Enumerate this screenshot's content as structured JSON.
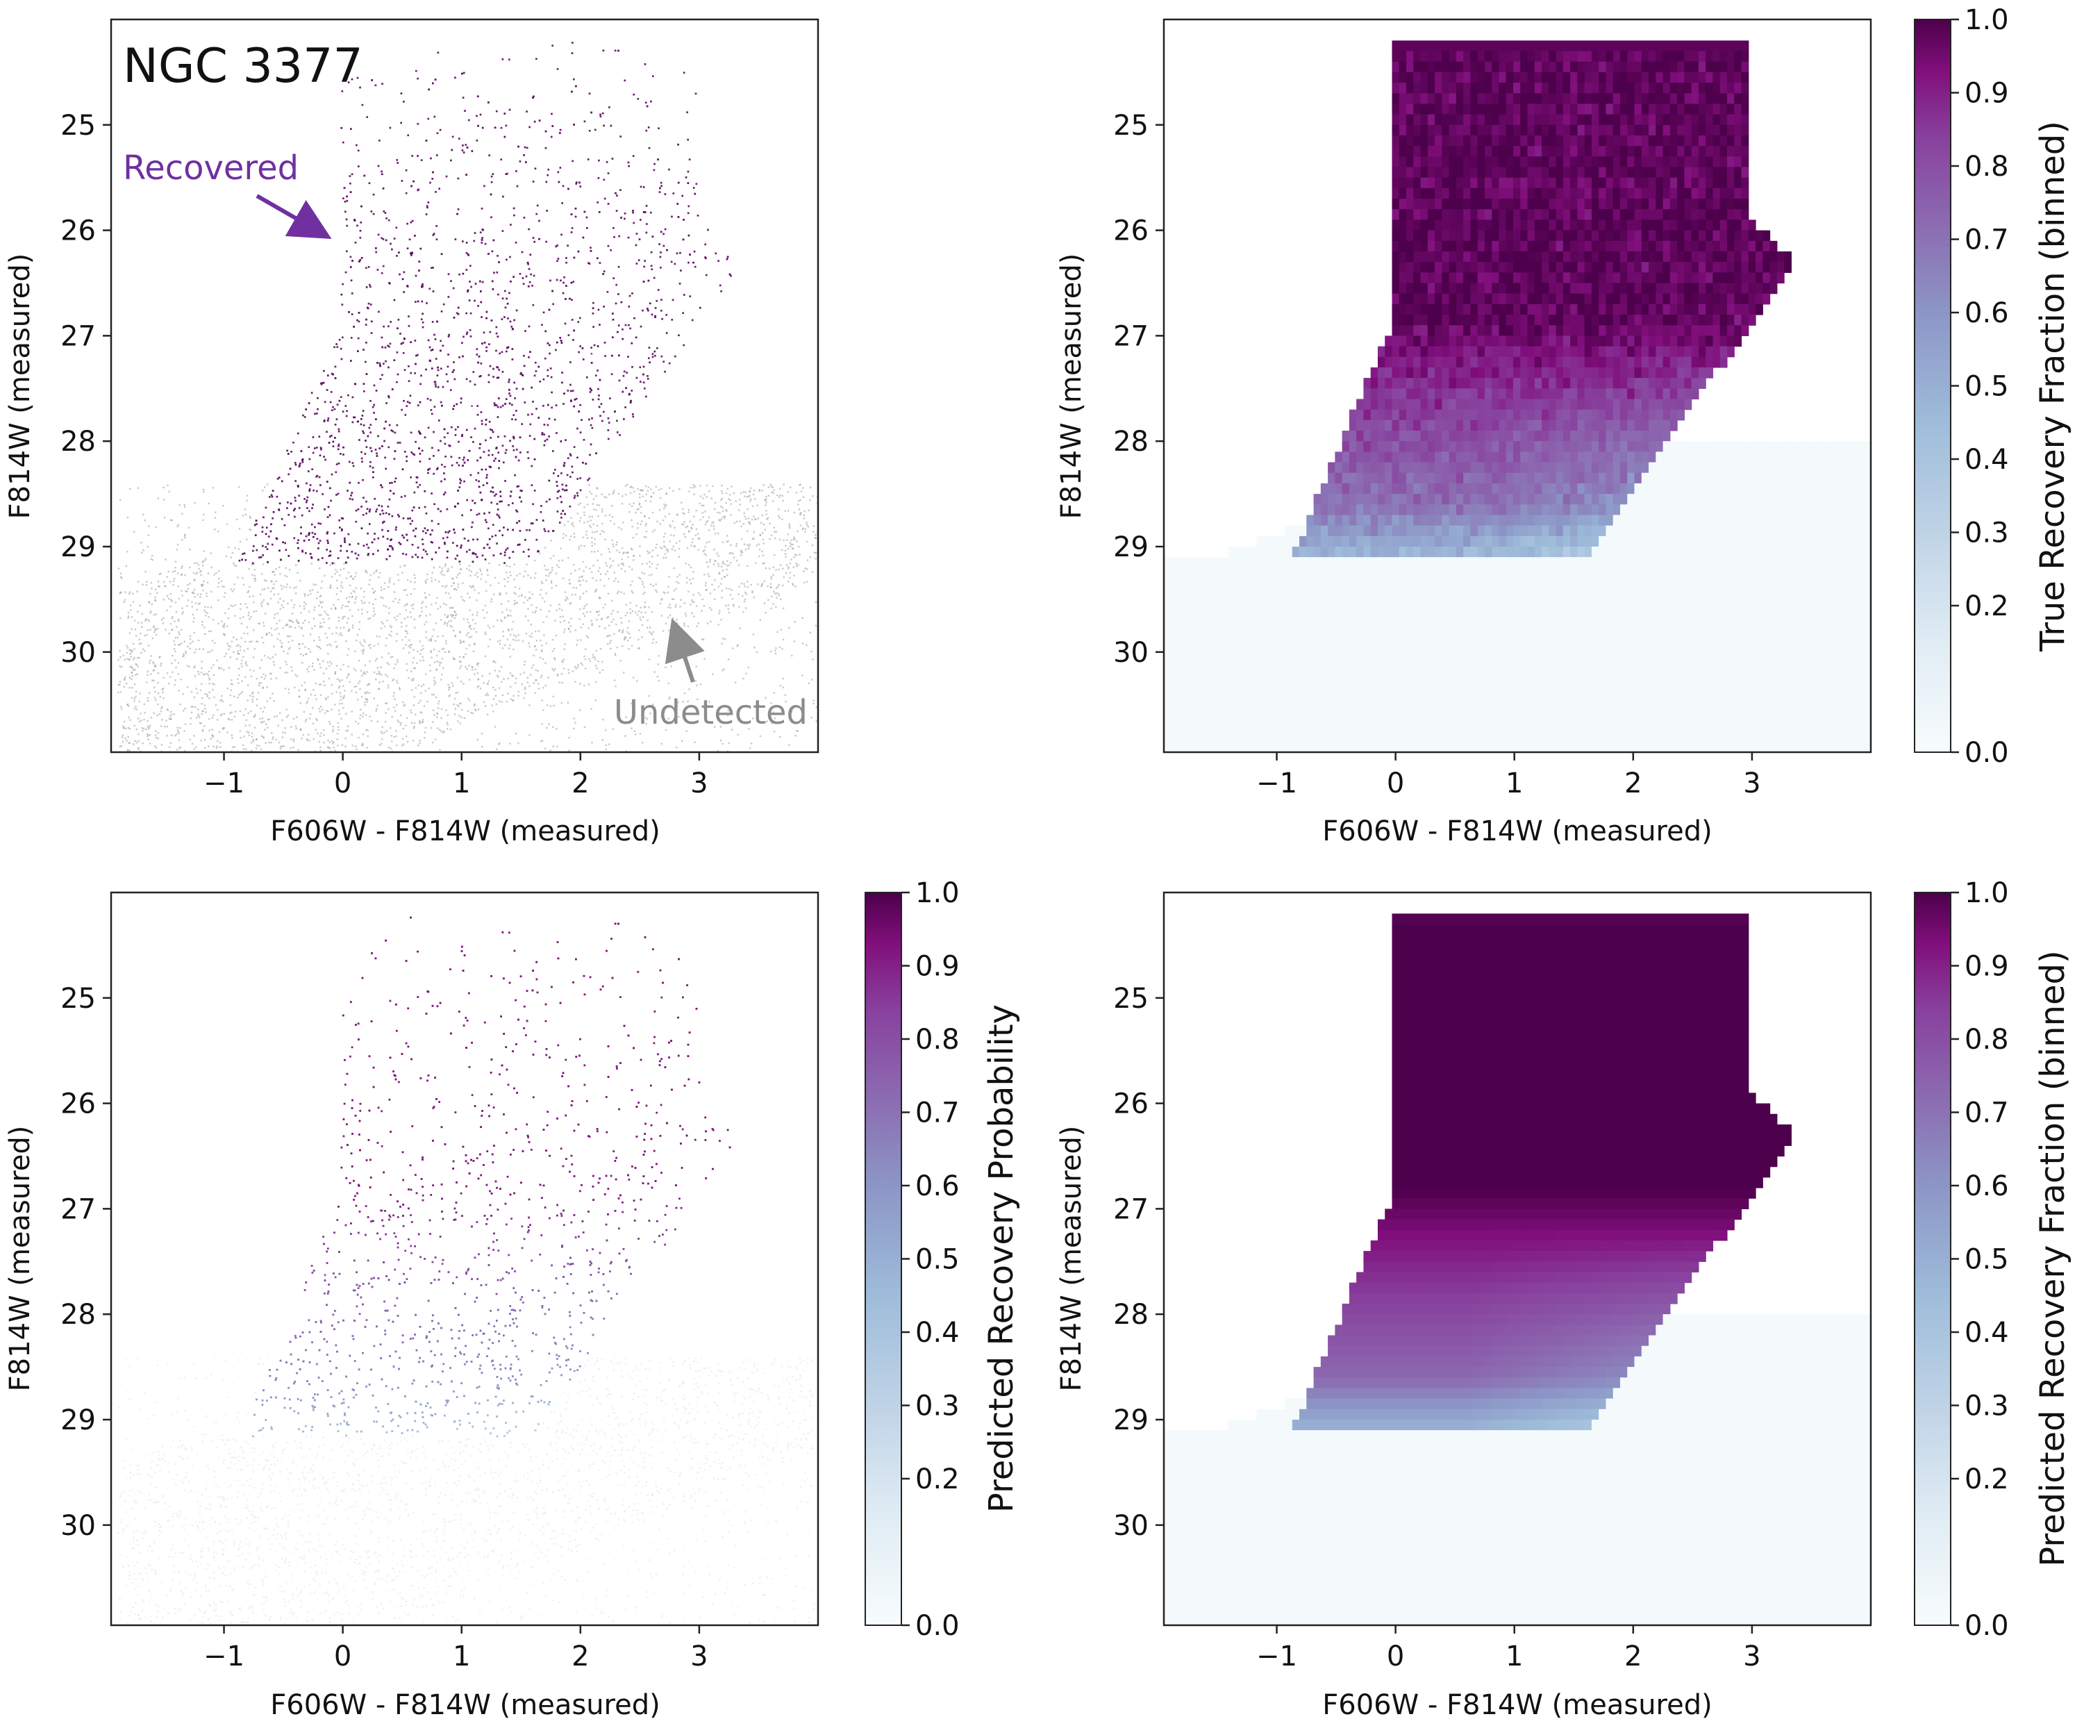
{
  "chart_data": [
    {
      "id": "tl",
      "type": "scatter",
      "title": "NGC 3377",
      "xlabel": "F606W - F814W (measured)",
      "ylabel": "F814W (measured)",
      "xlim": [
        -1.95,
        4.0
      ],
      "ylim": [
        30.95,
        24.0
      ],
      "xticks": [
        -1,
        0,
        1,
        2,
        3
      ],
      "yticks": [
        25,
        26,
        27,
        28,
        29,
        30
      ],
      "series": [
        {
          "name": "Recovered",
          "color": "#6a1b6f",
          "color_mode": "solid"
        },
        {
          "name": "Undetected",
          "color": "#8c8c8c",
          "color_mode": "solid"
        }
      ],
      "annotations": [
        {
          "text": "Recovered",
          "color": "#7030a0",
          "arrow_from": [
            -0.7,
            25.7
          ],
          "arrow_to": [
            -0.15,
            26.1
          ]
        },
        {
          "text": "Undetected",
          "color": "#8c8c8c",
          "arrow_from": [
            2.9,
            30.3
          ],
          "arrow_to": [
            2.75,
            29.7
          ]
        }
      ],
      "data_region": {
        "mag_min": 24.2,
        "mag_limit": 29.15,
        "color_left_bright": 0.0,
        "color_right_bright": 3.0,
        "color_knee": 1.6
      }
    },
    {
      "id": "tr",
      "type": "heatmap",
      "xlabel": "F606W - F814W (measured)",
      "ylabel": "F814W (measured)",
      "xlim": [
        -1.95,
        4.0
      ],
      "ylim": [
        30.95,
        24.0
      ],
      "xticks": [
        -1,
        0,
        1,
        2,
        3
      ],
      "yticks": [
        25,
        26,
        27,
        28,
        29,
        30
      ],
      "bin_size": {
        "color": 0.06,
        "mag": 0.1
      },
      "colorbar": {
        "label": "True Recovery Fraction (binned)",
        "range": [
          0.0,
          1.0
        ],
        "ticks": [
          "0.0",
          "0.2",
          "0.3",
          "0.4",
          "0.5",
          "0.6",
          "0.7",
          "0.8",
          "0.9",
          "1.0"
        ]
      },
      "noisy": true
    },
    {
      "id": "bl",
      "type": "scatter",
      "xlabel": "F606W - F814W (measured)",
      "ylabel": "F814W (measured)",
      "xlim": [
        -1.95,
        4.0
      ],
      "ylim": [
        30.95,
        24.0
      ],
      "xticks": [
        -1,
        0,
        1,
        2,
        3
      ],
      "yticks": [
        25,
        26,
        27,
        28,
        29,
        30
      ],
      "series": [
        {
          "name": "Predicted Recovery Probability",
          "color_mode": "probability"
        }
      ],
      "colorbar": {
        "label": "Predicted Recovery Probability",
        "range": [
          0.0,
          1.0
        ],
        "ticks": [
          "0.0",
          "0.2",
          "0.3",
          "0.4",
          "0.5",
          "0.6",
          "0.7",
          "0.8",
          "0.9",
          "1.0"
        ]
      }
    },
    {
      "id": "br",
      "type": "heatmap",
      "xlabel": "F606W - F814W (measured)",
      "ylabel": "F814W (measured)",
      "xlim": [
        -1.95,
        4.0
      ],
      "ylim": [
        30.95,
        24.0
      ],
      "xticks": [
        -1,
        0,
        1,
        2,
        3
      ],
      "yticks": [
        25,
        26,
        27,
        28,
        29,
        30
      ],
      "bin_size": {
        "color": 0.06,
        "mag": 0.1
      },
      "colorbar": {
        "label": "Predicted Recovery Fraction (binned)",
        "range": [
          0.0,
          1.0
        ],
        "ticks": [
          "0.0",
          "0.2",
          "0.3",
          "0.4",
          "0.5",
          "0.6",
          "0.7",
          "0.8",
          "0.9",
          "1.0"
        ]
      },
      "noisy": false
    }
  ],
  "colormap": {
    "name": "BuPu",
    "stops": [
      [
        0.0,
        "#f7fcfd"
      ],
      [
        0.15,
        "#e0ecf4"
      ],
      [
        0.3,
        "#bfd3e6"
      ],
      [
        0.45,
        "#9ebcda"
      ],
      [
        0.6,
        "#8c96c6"
      ],
      [
        0.72,
        "#8c6bb1"
      ],
      [
        0.84,
        "#88419d"
      ],
      [
        0.93,
        "#810f7c"
      ],
      [
        1.0,
        "#4d004b"
      ]
    ]
  }
}
